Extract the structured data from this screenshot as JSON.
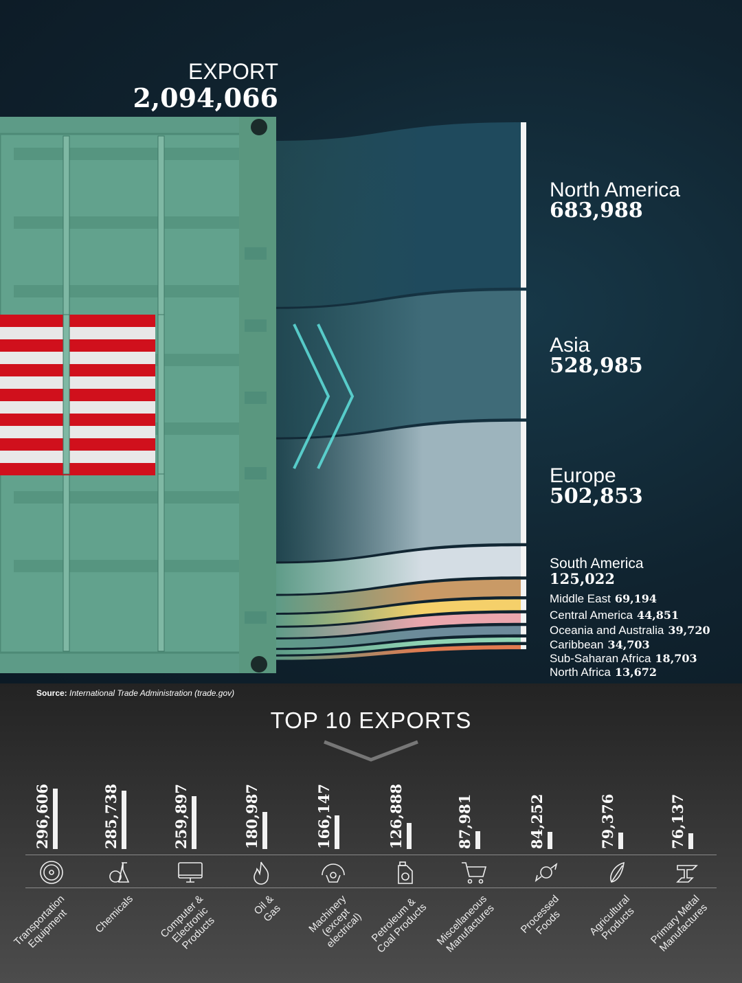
{
  "header": {
    "export_label": "EXPORT",
    "export_total": "2,094,066"
  },
  "source": {
    "label": "Source:",
    "text": "International Trade Administration (trade.gov)"
  },
  "colors": {
    "container": "#5d9b87",
    "flag_red": "#d0101c",
    "flag_white": "#e8e8e8",
    "chevron": "#5fe0dc"
  },
  "chart_data": [
    {
      "type": "sankey",
      "source": "EXPORT",
      "total": 2094066,
      "flows": [
        {
          "name": "North America",
          "value": 683988,
          "label": "683,988",
          "color": "#1f4a5d"
        },
        {
          "name": "Asia",
          "value": 528985,
          "label": "528,985",
          "color": "#3f6b78"
        },
        {
          "name": "Europe",
          "value": 502853,
          "label": "502,853",
          "color": "#9db4bd"
        },
        {
          "name": "South America",
          "value": 125022,
          "label": "125,022",
          "color": "#d4dde4"
        },
        {
          "name": "Middle East",
          "value": 69194,
          "label": "69,194",
          "color": "#c99a66"
        },
        {
          "name": "Central America",
          "value": 44851,
          "label": "44,851",
          "color": "#f5d06a"
        },
        {
          "name": "Oceania and Australia",
          "value": 39720,
          "label": "39,720",
          "color": "#eba6ad"
        },
        {
          "name": "Caribbean",
          "value": 34703,
          "label": "34,703",
          "color": "#6d8b9b"
        },
        {
          "name": "Sub-Saharan Africa",
          "value": 18703,
          "label": "18,703",
          "color": "#8fd3b3"
        },
        {
          "name": "North Africa",
          "value": 13672,
          "label": "13,672",
          "color": "#e27b50"
        }
      ]
    },
    {
      "type": "bar",
      "title": "TOP 10 EXPORTS",
      "categories": [
        "Transportation\nEquipment",
        "Chemicals",
        "Computer &\nElectronic\nProducts",
        "Oil &\nGas",
        "Machinery\n(except\nelectrical)",
        "Petroleum &\nCoal Products",
        "Miscellaneous\nManufactures",
        "Processed\nFoods",
        "Agricultural\nProducts",
        "Primary Metal\nManufactures"
      ],
      "values": [
        296606,
        285738,
        259897,
        180987,
        166147,
        126888,
        87981,
        84252,
        79376,
        76137
      ],
      "labels": [
        "296,606",
        "285,738",
        "259,897",
        "180,987",
        "166,147",
        "126,888",
        "87,981",
        "84,252",
        "79,376",
        "76,137"
      ],
      "icons": [
        "tire-icon",
        "flask-icon",
        "monitor-icon",
        "flame-icon",
        "gear-icon",
        "oil-can-icon",
        "cart-icon",
        "candy-icon",
        "corn-icon",
        "steel-beam-icon"
      ]
    }
  ]
}
